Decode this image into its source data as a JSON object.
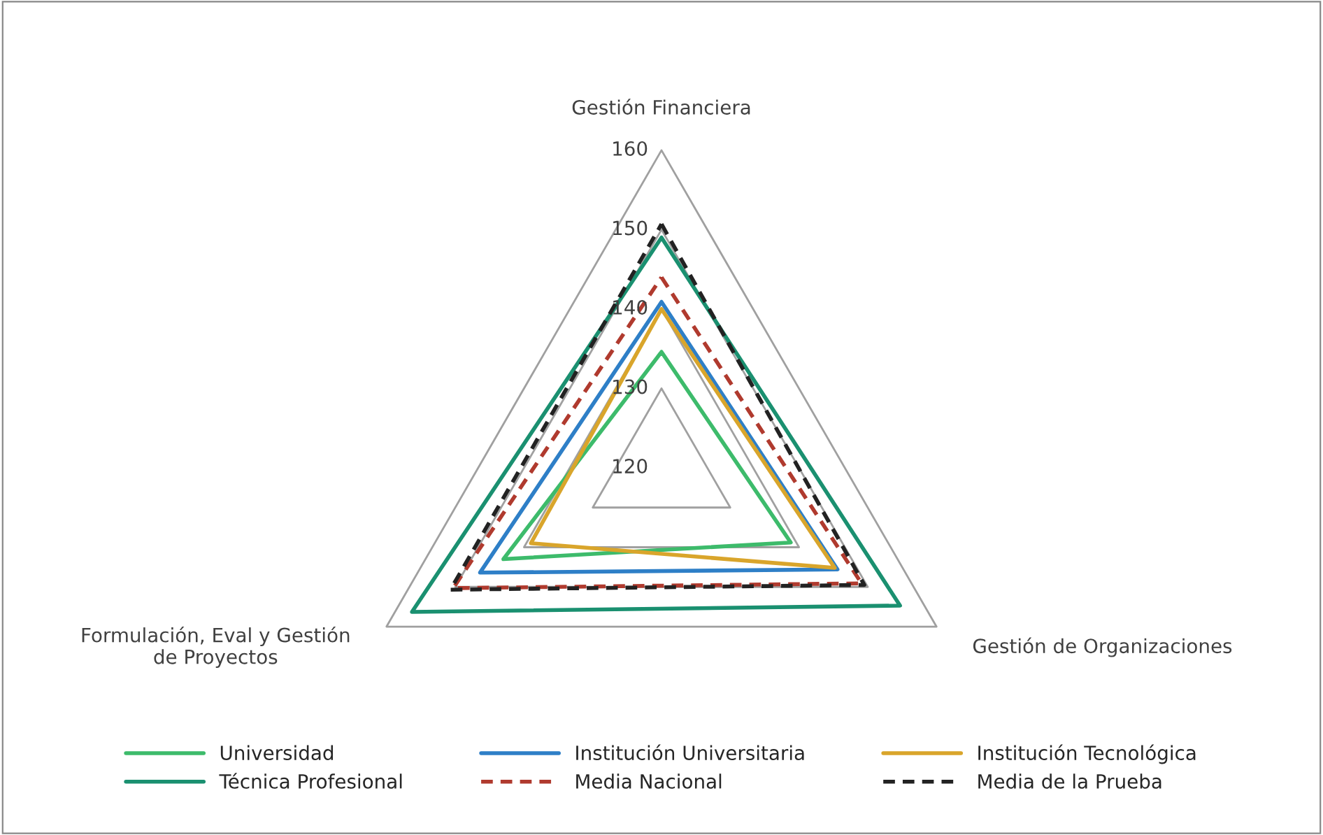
{
  "chart_data": {
    "type": "radar",
    "categories": [
      "Gestión Financiera",
      "Gestión de Organizaciones",
      "Formulación, Eval y Gestión\nde Proyectos"
    ],
    "ylim": [
      120,
      160
    ],
    "yticks": [
      120,
      130,
      140,
      150,
      160
    ],
    "grid": true,
    "legend": "bottom",
    "marker": "none",
    "series": [
      {
        "name": "Universidad",
        "color": "#3dbb6b",
        "values": [
          134.6,
          138.8,
          143
        ]
      },
      {
        "name": "Institución Universitaria",
        "color": "#2e7fc7",
        "values": [
          140.9,
          145.6,
          146.4
        ]
      },
      {
        "name": "Institución Tecnológica",
        "color": "#d9a52b",
        "values": [
          140,
          145.2,
          139
        ]
      },
      {
        "name": "Técnica Profesional",
        "color": "#1a9070",
        "values": [
          149,
          154.7,
          156.3
        ]
      },
      {
        "name": "Media Nacional",
        "color": "#b03a2e",
        "line_style": "dashed",
        "values": [
          144,
          149.1,
          150.3
        ]
      },
      {
        "name": "Media de la Prueba",
        "color": "#222222",
        "line_style": "dashed",
        "values": [
          150.7,
          149.5,
          150.7
        ]
      }
    ]
  }
}
